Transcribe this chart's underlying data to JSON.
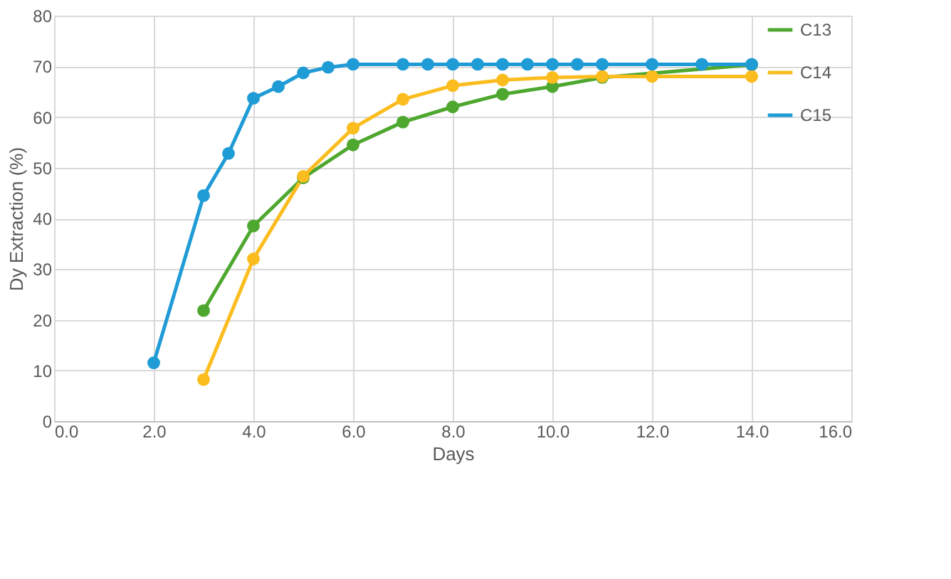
{
  "chart_data": {
    "type": "line",
    "xlabel": "Days",
    "ylabel": "Dy Extraction (%)",
    "xlim": [
      0,
      16
    ],
    "xticks": [
      {
        "value": 0,
        "label": "0.0"
      },
      {
        "value": 2,
        "label": "2.0"
      },
      {
        "value": 4,
        "label": "4.0"
      },
      {
        "value": 6,
        "label": "6.0"
      },
      {
        "value": 8,
        "label": "8.0"
      },
      {
        "value": 10,
        "label": "10.0"
      },
      {
        "value": 12,
        "label": "12.0"
      },
      {
        "value": 14,
        "label": "14.0"
      },
      {
        "value": 16,
        "label": "16.0"
      }
    ],
    "ylim": [
      0,
      80
    ],
    "yticks": [
      0,
      10,
      20,
      30,
      40,
      50,
      60,
      70,
      80
    ],
    "grid": true,
    "legend": "right",
    "marker": "circle",
    "line_style": "solid",
    "series": [
      {
        "name": "C13",
        "color": "#4ea72e",
        "x": [
          3,
          4,
          5,
          6,
          7,
          8,
          9,
          10,
          11,
          14
        ],
        "values": [
          21.8,
          38.5,
          48,
          54.5,
          59,
          62,
          64.5,
          66,
          67.8,
          70.3
        ]
      },
      {
        "name": "C14",
        "color": "#fbbc1e",
        "x": [
          3,
          4,
          5,
          6,
          7,
          8,
          9,
          10,
          11,
          12,
          14
        ],
        "values": [
          8.2,
          32,
          48.3,
          57.8,
          63.5,
          66.2,
          67.3,
          67.8,
          68,
          68,
          68
        ]
      },
      {
        "name": "C15",
        "color": "#1f9bd6",
        "x": [
          2,
          3,
          3.5,
          4,
          4.5,
          5,
          5.5,
          6,
          7,
          7.5,
          8,
          8.5,
          9,
          9.5,
          10,
          10.5,
          11,
          12,
          13,
          14
        ],
        "values": [
          11.5,
          44.5,
          52.8,
          63.7,
          66,
          68.7,
          69.8,
          70.4,
          70.4,
          70.4,
          70.4,
          70.4,
          70.4,
          70.4,
          70.4,
          70.4,
          70.4,
          70.4,
          70.4,
          70.4
        ]
      }
    ]
  }
}
